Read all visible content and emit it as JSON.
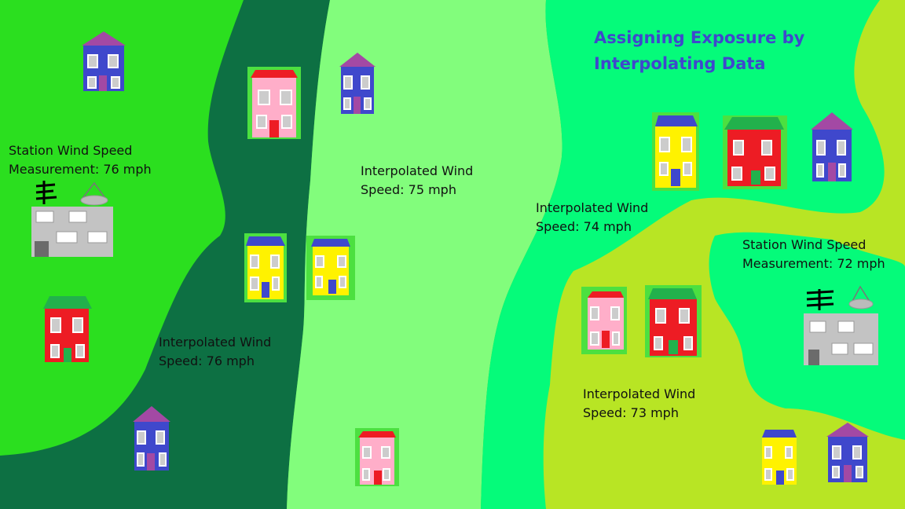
{
  "title": "Assigning Exposure by\nInterpolating Data",
  "stations": [
    {
      "id": "left",
      "label": "Station Wind Speed\nMeasurement: 76 mph"
    },
    {
      "id": "right",
      "label": "Station Wind Speed\nMeasurement: 72 mph"
    }
  ],
  "interpolated": [
    {
      "id": "dark-band",
      "label": "Interpolated Wind\nSpeed: 76 mph"
    },
    {
      "id": "light-band",
      "label": "Interpolated Wind\nSpeed: 75 mph"
    },
    {
      "id": "teal-band",
      "label": "Interpolated Wind\nSpeed: 74 mph"
    },
    {
      "id": "yellow-band",
      "label": "Interpolated Wind\nSpeed: 73 mph"
    }
  ],
  "colors": {
    "zone_76_outer": "#2bdf1f",
    "zone_76_dark": "#0d7043",
    "zone_75": "#82fd7c",
    "zone_74": "#05fb7a",
    "zone_73": "#b8e524",
    "title": "#3f48cc"
  }
}
